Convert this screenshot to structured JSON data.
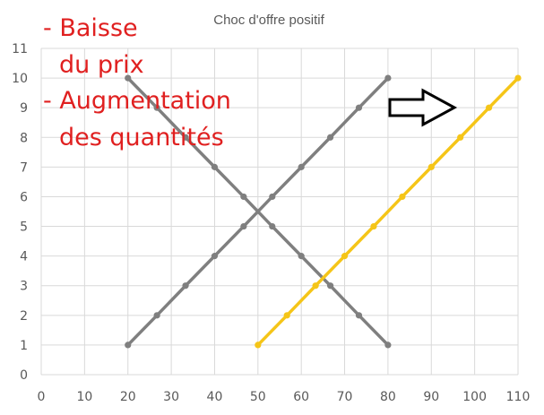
{
  "chart_data": {
    "type": "line",
    "title": "Choc d'offre positif",
    "xlim": [
      0,
      110
    ],
    "ylim": [
      0,
      11
    ],
    "x_ticks": [
      "0",
      "10",
      "20",
      "30",
      "40",
      "50",
      "60",
      "70",
      "80",
      "90",
      "100",
      "110"
    ],
    "y_ticks": [
      "0",
      "1",
      "2",
      "3",
      "4",
      "5",
      "6",
      "7",
      "8",
      "9",
      "10",
      "11"
    ],
    "grid": true,
    "legend": "none",
    "series": [
      {
        "color": "#7f7f7f",
        "points": [
          [
            20,
            10
          ],
          [
            26.7,
            9
          ],
          [
            33.3,
            8
          ],
          [
            40,
            7
          ],
          [
            46.7,
            6
          ],
          [
            53.3,
            5
          ],
          [
            60,
            4
          ],
          [
            66.7,
            3
          ],
          [
            73.3,
            2
          ],
          [
            80,
            1
          ]
        ]
      },
      {
        "color": "#7f7f7f",
        "points": [
          [
            20,
            1
          ],
          [
            26.7,
            2
          ],
          [
            33.3,
            3
          ],
          [
            40,
            4
          ],
          [
            46.7,
            5
          ],
          [
            53.3,
            6
          ],
          [
            60,
            7
          ],
          [
            66.7,
            8
          ],
          [
            73.3,
            9
          ],
          [
            80,
            10
          ]
        ]
      },
      {
        "color": "#f5c518",
        "points": [
          [
            50,
            1
          ],
          [
            56.7,
            2
          ],
          [
            63.3,
            3
          ],
          [
            70,
            4
          ],
          [
            76.7,
            5
          ],
          [
            83.3,
            6
          ],
          [
            90,
            7
          ],
          [
            96.7,
            8
          ],
          [
            103.3,
            9
          ],
          [
            110,
            10
          ]
        ]
      }
    ],
    "annotations": {
      "lines": [
        "- Baisse",
        "du prix",
        "- Augmentation",
        "des quantités"
      ],
      "color": "#e02020",
      "arrow": "right"
    }
  }
}
